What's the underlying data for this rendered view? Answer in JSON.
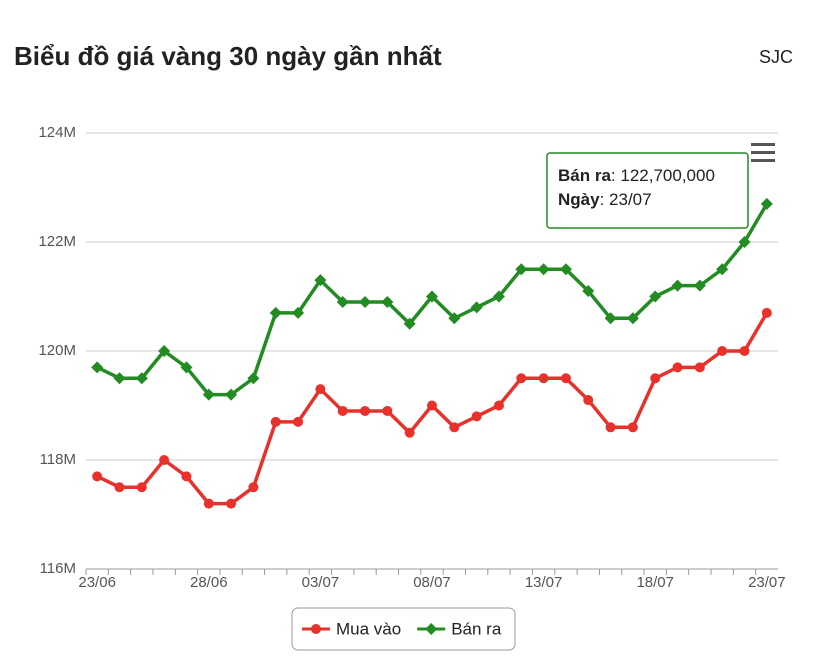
{
  "header": {
    "source": "SJC"
  },
  "chart_data": {
    "type": "line",
    "title": "Biểu đồ giá vàng 30 ngày gần nhất",
    "categories": [
      "23/06",
      null,
      null,
      null,
      null,
      "28/06",
      null,
      null,
      null,
      null,
      "03/07",
      null,
      null,
      null,
      null,
      "08/07",
      null,
      null,
      null,
      null,
      "13/07",
      null,
      null,
      null,
      null,
      "18/07",
      null,
      null,
      null,
      null,
      "23/07"
    ],
    "series": [
      {
        "name": "Mua vào",
        "color": "#e8312a",
        "marker": "circle",
        "values": [
          117.7,
          117.5,
          117.5,
          118.0,
          117.7,
          117.2,
          117.2,
          117.5,
          118.7,
          118.7,
          119.3,
          118.9,
          118.9,
          118.9,
          118.5,
          119.0,
          118.6,
          118.8,
          119.0,
          119.5,
          119.5,
          119.5,
          119.1,
          118.6,
          118.6,
          119.5,
          119.7,
          119.7,
          120.0,
          120.0,
          120.7
        ]
      },
      {
        "name": "Bán ra",
        "color": "#228b22",
        "marker": "diamond",
        "values": [
          119.7,
          119.5,
          119.5,
          120.0,
          119.7,
          119.2,
          119.2,
          119.5,
          120.7,
          120.7,
          121.3,
          120.9,
          120.9,
          120.9,
          120.5,
          121.0,
          120.6,
          120.8,
          121.0,
          121.5,
          121.5,
          121.5,
          121.1,
          120.6,
          120.6,
          121.0,
          121.2,
          121.2,
          121.5,
          122.0,
          122.7
        ]
      }
    ],
    "ylim": [
      116,
      124
    ],
    "yticks": [
      {
        "value": 116,
        "label": "116M"
      },
      {
        "value": 118,
        "label": "118M"
      },
      {
        "value": 120,
        "label": "120M"
      },
      {
        "value": 122,
        "label": "122M"
      },
      {
        "value": 124,
        "label": "124M"
      }
    ],
    "grid": true,
    "legend": "bottom",
    "tooltip": {
      "value": "122,700,000",
      "date_label": "Ngày"
    }
  }
}
